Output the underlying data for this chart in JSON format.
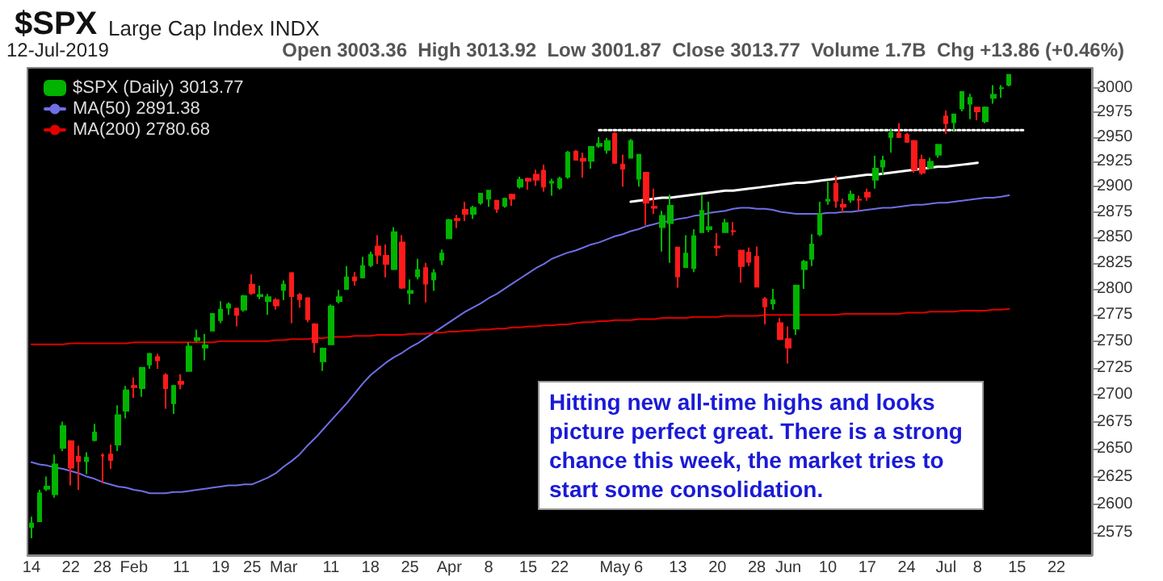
{
  "chart_data": {
    "type": "candlestick",
    "title": "$SPX",
    "subtitle": "Large Cap Index INDX",
    "annotations": [
      "12-Jul-2019",
      "Open 3003.36  High 3013.92  Low 3001.87  Close 3013.77  Volume 1.7B  Chg +13.86 (+0.46%)",
      "Hitting new all-time highs and looks picture perfect great. There is a strong chance this week, the market tries to start some consolidation."
    ],
    "categories": [
      "14",
      null,
      null,
      null,
      null,
      "22",
      null,
      null,
      null,
      "28",
      null,
      null,
      null,
      "Feb",
      null,
      null,
      null,
      null,
      null,
      "11",
      null,
      null,
      null,
      null,
      "19",
      null,
      null,
      null,
      "25",
      null,
      null,
      null,
      "Mar",
      null,
      null,
      null,
      null,
      null,
      "11",
      null,
      null,
      null,
      null,
      "18",
      null,
      null,
      null,
      null,
      "25",
      null,
      null,
      null,
      null,
      "Apr",
      null,
      null,
      null,
      null,
      "8",
      null,
      null,
      null,
      null,
      "15",
      null,
      null,
      null,
      "22",
      null,
      null,
      null,
      null,
      null,
      null,
      "May",
      null,
      null,
      "6",
      null,
      null,
      null,
      null,
      "13",
      null,
      null,
      null,
      null,
      "20",
      null,
      null,
      null,
      null,
      "28",
      null,
      null,
      null,
      "Jun",
      null,
      null,
      null,
      null,
      "10",
      null,
      null,
      null,
      null,
      "17",
      null,
      null,
      null,
      null,
      "24",
      null,
      null,
      null,
      null,
      "Jul",
      null,
      null,
      null,
      "8",
      null,
      null,
      null,
      null,
      "15",
      null,
      null,
      null,
      null,
      "22",
      null,
      null,
      null,
      null
    ],
    "series": [
      {
        "name": "$SPX (Daily) 3013.77",
        "ohlc": [
          [
            2580,
            2589,
            2570,
            2583
          ],
          [
            2585,
            2613,
            2585,
            2610
          ],
          [
            2614,
            2625,
            2612,
            2616
          ],
          [
            2609,
            2645,
            2606,
            2636
          ],
          [
            2651,
            2675,
            2648,
            2671
          ],
          [
            2657,
            2658,
            2617,
            2633
          ],
          [
            2643,
            2653,
            2613,
            2639
          ],
          [
            2639,
            2647,
            2627,
            2642
          ],
          [
            2658,
            2673,
            2657,
            2665
          ],
          [
            2644,
            2646,
            2619,
            2644
          ],
          [
            2645,
            2654,
            2632,
            2640
          ],
          [
            2654,
            2690,
            2648,
            2681
          ],
          [
            2685,
            2708,
            2678,
            2704
          ],
          [
            2708,
            2716,
            2697,
            2707
          ],
          [
            2706,
            2725,
            2698,
            2725
          ],
          [
            2728,
            2739,
            2724,
            2738
          ],
          [
            2735,
            2738,
            2724,
            2732
          ],
          [
            2718,
            2720,
            2687,
            2706
          ],
          [
            2692,
            2709,
            2682,
            2708
          ],
          [
            2712,
            2719,
            2705,
            2710
          ],
          [
            2722,
            2749,
            2722,
            2745
          ],
          [
            2751,
            2761,
            2749,
            2753
          ],
          [
            2744,
            2757,
            2732,
            2746
          ],
          [
            2760,
            2776,
            2760,
            2776
          ],
          [
            2770,
            2788,
            2767,
            2780
          ],
          [
            2782,
            2787,
            2775,
            2785
          ],
          [
            2781,
            2782,
            2764,
            2775
          ],
          [
            2780,
            2794,
            2778,
            2793
          ],
          [
            2804,
            2814,
            2794,
            2796
          ],
          [
            2793,
            2803,
            2790,
            2794
          ],
          [
            2788,
            2795,
            2775,
            2792
          ],
          [
            2789,
            2791,
            2780,
            2784
          ],
          [
            2799,
            2808,
            2789,
            2804
          ],
          [
            2815,
            2816,
            2767,
            2793
          ],
          [
            2794,
            2796,
            2782,
            2790
          ],
          [
            2791,
            2791,
            2768,
            2771
          ],
          [
            2766,
            2767,
            2739,
            2749
          ],
          [
            2731,
            2744,
            2722,
            2743
          ],
          [
            2747,
            2785,
            2747,
            2783
          ],
          [
            2788,
            2799,
            2786,
            2792
          ],
          [
            2800,
            2822,
            2799,
            2811
          ],
          [
            2811,
            2816,
            2803,
            2808
          ],
          [
            2811,
            2831,
            2810,
            2822
          ],
          [
            2823,
            2836,
            2821,
            2833
          ],
          [
            2841,
            2852,
            2824,
            2833
          ],
          [
            2832,
            2843,
            2811,
            2824
          ],
          [
            2819,
            2860,
            2818,
            2855
          ],
          [
            2845,
            2852,
            2800,
            2801
          ],
          [
            2796,
            2809,
            2785,
            2798
          ],
          [
            2812,
            2829,
            2809,
            2818
          ],
          [
            2820,
            2825,
            2787,
            2805
          ],
          [
            2809,
            2819,
            2798,
            2815
          ],
          [
            2828,
            2838,
            2823,
            2834
          ],
          [
            2849,
            2868,
            2849,
            2867
          ],
          [
            2868,
            2872,
            2859,
            2867
          ],
          [
            2877,
            2885,
            2866,
            2873
          ],
          [
            2873,
            2881,
            2868,
            2879
          ],
          [
            2884,
            2893,
            2882,
            2893
          ],
          [
            2888,
            2896,
            2880,
            2896
          ],
          [
            2886,
            2886,
            2874,
            2878
          ],
          [
            2881,
            2889,
            2879,
            2888
          ],
          [
            2892,
            2893,
            2881,
            2888
          ],
          [
            2900,
            2910,
            2898,
            2907
          ],
          [
            2908,
            2909,
            2897,
            2906
          ],
          [
            2912,
            2917,
            2901,
            2907
          ],
          [
            2916,
            2922,
            2895,
            2900
          ],
          [
            2904,
            2908,
            2891,
            2905
          ],
          [
            2899,
            2910,
            2897,
            2908
          ],
          [
            2910,
            2936,
            2908,
            2934
          ],
          [
            2935,
            2937,
            2927,
            2927
          ],
          [
            2928,
            2934,
            2909,
            2926
          ],
          [
            2926,
            2940,
            2918,
            2940
          ],
          [
            2941,
            2950,
            2939,
            2943
          ],
          [
            2937,
            2949,
            2933,
            2946
          ],
          [
            2953,
            2955,
            2923,
            2924
          ],
          [
            2922,
            2932,
            2900,
            2918
          ],
          [
            2929,
            2948,
            2929,
            2946
          ],
          [
            2908,
            2932,
            2900,
            2932
          ],
          [
            2914,
            2914,
            2862,
            2884
          ],
          [
            2880,
            2898,
            2873,
            2879
          ],
          [
            2860,
            2876,
            2836,
            2871
          ],
          [
            2864,
            2892,
            2825,
            2881
          ],
          [
            2840,
            2840,
            2801,
            2812
          ],
          [
            2821,
            2852,
            2821,
            2834
          ],
          [
            2820,
            2858,
            2816,
            2851
          ],
          [
            2855,
            2892,
            2855,
            2876
          ],
          [
            2858,
            2885,
            2855,
            2860
          ],
          [
            2841,
            2854,
            2832,
            2840
          ],
          [
            2855,
            2868,
            2855,
            2864
          ],
          [
            2856,
            2865,
            2852,
            2856
          ],
          [
            2837,
            2837,
            2806,
            2822
          ],
          [
            2835,
            2840,
            2822,
            2826
          ],
          [
            2831,
            2841,
            2802,
            2802
          ],
          [
            2790,
            2792,
            2766,
            2783
          ],
          [
            2786,
            2800,
            2780,
            2789
          ],
          [
            2767,
            2772,
            2751,
            2752
          ],
          [
            2752,
            2764,
            2729,
            2744
          ],
          [
            2762,
            2804,
            2756,
            2803
          ],
          [
            2819,
            2828,
            2800,
            2826
          ],
          [
            2829,
            2853,
            2822,
            2843
          ],
          [
            2853,
            2885,
            2851,
            2873
          ],
          [
            2886,
            2905,
            2882,
            2887
          ],
          [
            2903,
            2911,
            2879,
            2886
          ],
          [
            2882,
            2888,
            2874,
            2880
          ],
          [
            2887,
            2896,
            2884,
            2892
          ],
          [
            2887,
            2891,
            2877,
            2887
          ],
          [
            2894,
            2898,
            2886,
            2890
          ],
          [
            2907,
            2931,
            2898,
            2918
          ],
          [
            2920,
            2931,
            2912,
            2926
          ],
          [
            2950,
            2958,
            2934,
            2954
          ],
          [
            2953,
            2964,
            2949,
            2950
          ],
          [
            2952,
            2954,
            2944,
            2945
          ],
          [
            2946,
            2947,
            2914,
            2917
          ],
          [
            2927,
            2932,
            2912,
            2914
          ],
          [
            2919,
            2929,
            2918,
            2925
          ],
          [
            2932,
            2943,
            2929,
            2942
          ],
          [
            2971,
            2977,
            2953,
            2964
          ],
          [
            2965,
            2973,
            2956,
            2973
          ],
          [
            2979,
            2996,
            2976,
            2996
          ],
          [
            2984,
            2994,
            2968,
            2990
          ],
          [
            2980,
            2980,
            2967,
            2976
          ],
          [
            2966,
            2981,
            2964,
            2980
          ],
          [
            2990,
            3003,
            2984,
            2993
          ],
          [
            3000,
            3003,
            2990,
            3000
          ],
          [
            3003.36,
            3013.92,
            3001.87,
            3013.77
          ],
          null,
          null,
          null,
          null,
          null,
          null,
          null,
          null,
          null,
          null
        ]
      },
      {
        "name": "MA(50) 2891.38",
        "type": "line",
        "color": "#6f6fe8",
        "values": [
          2638,
          2636,
          2635,
          2633,
          2632,
          2630,
          2628,
          2625,
          2623,
          2620,
          2618,
          2616,
          2615,
          2613,
          2612,
          2610,
          2610,
          2610,
          2611,
          2611,
          2612,
          2613,
          2614,
          2615,
          2616,
          2617,
          2617,
          2618,
          2618,
          2621,
          2624,
          2628,
          2634,
          2639,
          2645,
          2653,
          2660,
          2668,
          2676,
          2684,
          2692,
          2701,
          2710,
          2718,
          2724,
          2730,
          2735,
          2739,
          2744,
          2748,
          2753,
          2758,
          2763,
          2768,
          2773,
          2778,
          2782,
          2786,
          2791,
          2795,
          2800,
          2805,
          2810,
          2815,
          2820,
          2824,
          2829,
          2832,
          2835,
          2837,
          2840,
          2843,
          2845,
          2848,
          2851,
          2853,
          2856,
          2858,
          2861,
          2863,
          2865,
          2866,
          2868,
          2869,
          2871,
          2872,
          2874,
          2875,
          2876,
          2878,
          2879,
          2879,
          2878,
          2878,
          2877,
          2875,
          2874,
          2873,
          2873,
          2873,
          2873,
          2874,
          2874,
          2875,
          2875,
          2876,
          2877,
          2878,
          2879,
          2879,
          2880,
          2881,
          2882,
          2882,
          2883,
          2884,
          2884,
          2885,
          2886,
          2887,
          2888,
          2889,
          2889,
          2890,
          2891.38,
          null,
          null,
          null,
          null,
          null,
          null,
          null,
          null,
          null,
          null
        ]
      },
      {
        "name": "MA(200) 2780.68",
        "type": "line",
        "color": "#e00000",
        "values": [
          2747,
          2747,
          2747,
          2747,
          2747,
          2748,
          2748,
          2748,
          2748,
          2748,
          2748,
          2748,
          2748,
          2749,
          2749,
          2749,
          2749,
          2749,
          2749,
          2749,
          2749,
          2749,
          2749,
          2749,
          2750,
          2750,
          2750,
          2750,
          2750,
          2750,
          2750,
          2751,
          2751,
          2752,
          2752,
          2752,
          2753,
          2753,
          2754,
          2754,
          2754,
          2755,
          2755,
          2755,
          2756,
          2756,
          2756,
          2756,
          2757,
          2757,
          2757,
          2758,
          2758,
          2759,
          2759,
          2760,
          2760,
          2761,
          2761,
          2762,
          2762,
          2763,
          2763,
          2764,
          2764,
          2765,
          2765,
          2766,
          2766,
          2767,
          2768,
          2768,
          2769,
          2769,
          2770,
          2770,
          2770,
          2771,
          2771,
          2771,
          2772,
          2772,
          2772,
          2772,
          2773,
          2773,
          2773,
          2773,
          2774,
          2774,
          2774,
          2774,
          2774,
          2775,
          2775,
          2775,
          2775,
          2775,
          2775,
          2775,
          2775,
          2775,
          2775,
          2776,
          2776,
          2776,
          2776,
          2776,
          2776,
          2776,
          2776,
          2777,
          2777,
          2777,
          2778,
          2778,
          2778,
          2778,
          2779,
          2779,
          2779,
          2779,
          2780,
          2780,
          2780.68,
          null,
          null,
          null,
          null,
          null,
          null,
          null,
          null,
          null,
          null
        ]
      },
      {
        "type": "line",
        "color": "#ffffff",
        "values": [
          null,
          null,
          null,
          null,
          null,
          null,
          null,
          null,
          null,
          null,
          null,
          null,
          null,
          null,
          null,
          null,
          null,
          null,
          null,
          null,
          null,
          null,
          null,
          null,
          null,
          null,
          null,
          null,
          null,
          null,
          null,
          null,
          null,
          null,
          null,
          null,
          null,
          null,
          null,
          null,
          null,
          null,
          null,
          null,
          null,
          null,
          null,
          null,
          null,
          null,
          null,
          null,
          null,
          null,
          null,
          null,
          null,
          null,
          null,
          null,
          null,
          null,
          null,
          null,
          null,
          null,
          null,
          null,
          null,
          null,
          null,
          null,
          null,
          null,
          null,
          null,
          2885,
          2886,
          2887,
          2888,
          2889,
          2889,
          2890,
          2891,
          2892,
          2893,
          2894,
          2895,
          2896,
          2896,
          2897,
          2898,
          2899,
          2900,
          2901,
          2902,
          2903,
          2904,
          2904,
          2905,
          2906,
          2907,
          2908,
          2909,
          2910,
          2911,
          2912,
          2912,
          2913,
          2914,
          2915,
          2916,
          2917,
          2918,
          2919,
          2920,
          2920,
          2921,
          2922,
          2923,
          2924,
          null,
          null,
          null,
          null,
          null,
          null,
          null,
          null,
          null,
          null,
          null,
          null,
          null,
          null
        ]
      },
      {
        "type": "line",
        "color": "#ffffff",
        "line_style": "dotted",
        "values": [
          null,
          null,
          null,
          null,
          null,
          null,
          null,
          null,
          null,
          null,
          null,
          null,
          null,
          null,
          null,
          null,
          null,
          null,
          null,
          null,
          null,
          null,
          null,
          null,
          null,
          null,
          null,
          null,
          null,
          null,
          null,
          null,
          null,
          null,
          null,
          null,
          null,
          null,
          null,
          null,
          null,
          null,
          null,
          null,
          null,
          null,
          null,
          null,
          null,
          null,
          null,
          null,
          null,
          null,
          null,
          null,
          null,
          null,
          null,
          null,
          null,
          null,
          null,
          null,
          null,
          null,
          null,
          null,
          null,
          null,
          null,
          null,
          2957,
          2957,
          2957,
          2957,
          2957,
          2957,
          2957,
          2957,
          2957,
          2957,
          2957,
          2957,
          2957,
          2957,
          2957,
          2957,
          2957,
          2957,
          2957,
          2957,
          2957,
          2957,
          2957,
          2957,
          2957,
          2957,
          2957,
          2957,
          2957,
          2957,
          2957,
          2957,
          2957,
          2957,
          2957,
          2957,
          2957,
          2957,
          2957,
          2957,
          2957,
          2957,
          2957,
          2957,
          2957,
          2957,
          2957,
          2957,
          2957,
          2957,
          2957,
          2957,
          2957,
          2957,
          2957,
          null,
          null,
          null,
          null,
          null,
          null,
          null,
          null
        ]
      }
    ],
    "ylim": [
      2555,
      3021
    ],
    "yticks": [
      2575,
      2600,
      2625,
      2650,
      2675,
      2700,
      2725,
      2750,
      2775,
      2800,
      2825,
      2850,
      2875,
      2900,
      2925,
      2950,
      2975,
      3000
    ],
    "log": "y",
    "legend": "top left",
    "marker": "none"
  }
}
